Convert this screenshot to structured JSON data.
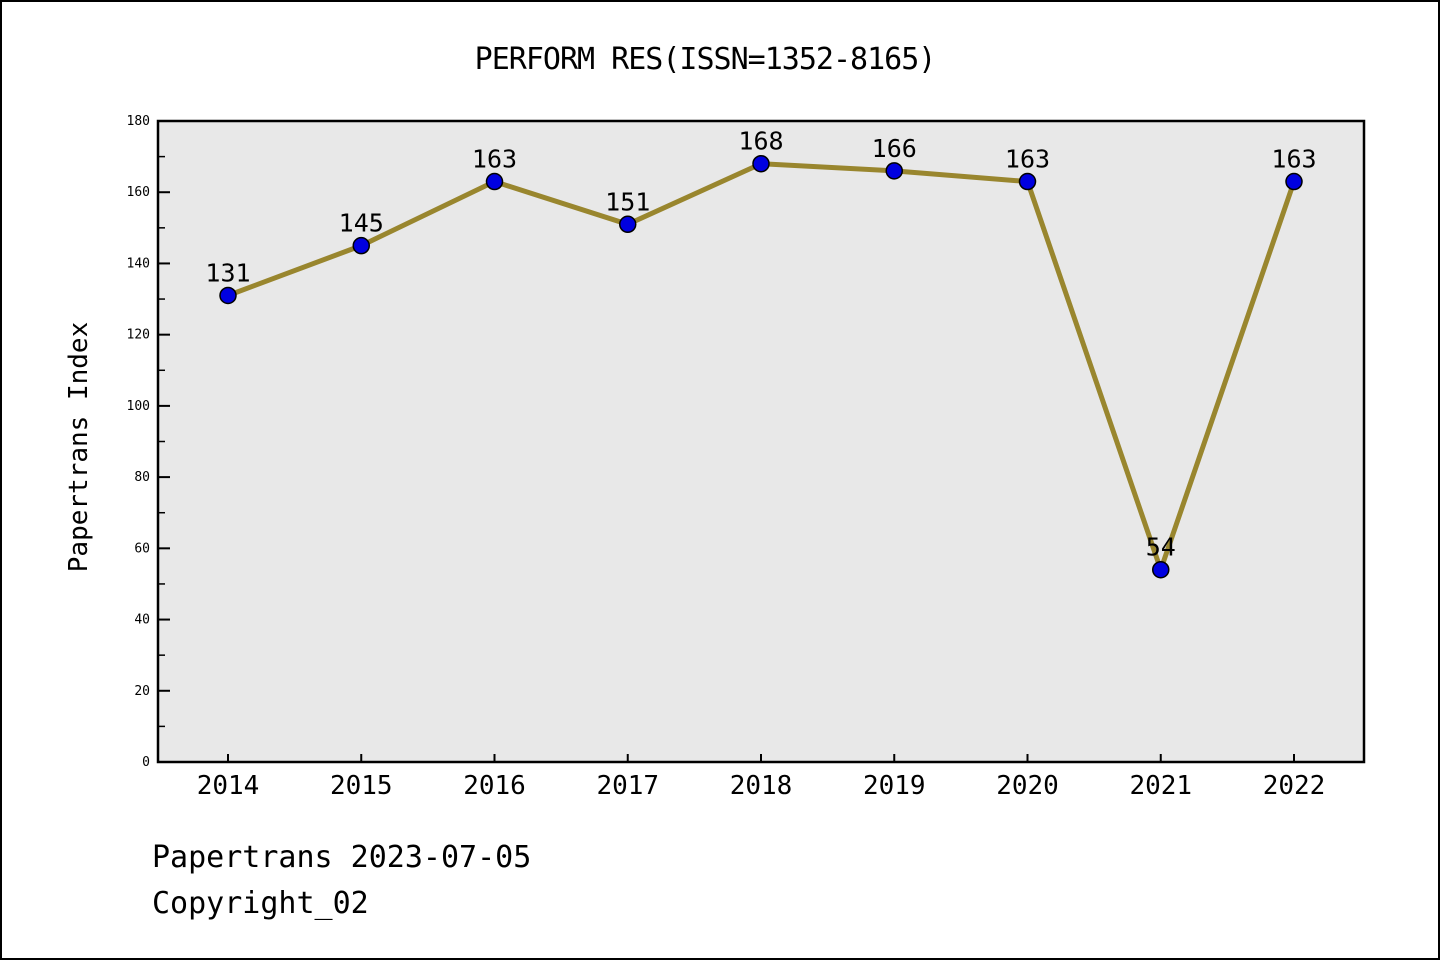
{
  "chart_data": {
    "type": "line",
    "title": "PERFORM RES(ISSN=1352-8165)",
    "categories": [
      "2014",
      "2015",
      "2016",
      "2017",
      "2018",
      "2019",
      "2020",
      "2021",
      "2022"
    ],
    "values": [
      131,
      145,
      163,
      151,
      168,
      166,
      163,
      54,
      163
    ],
    "series_name": "Papertrans Index",
    "xlabel": "",
    "ylabel": "Papertrans Index",
    "ylim": [
      0,
      180
    ],
    "y_major_ticks": [
      0,
      20,
      40,
      60,
      80,
      100,
      120,
      140,
      160,
      180
    ],
    "y_minor_step": 10,
    "grid": false,
    "legend_position": "none",
    "point_labels_visible": true,
    "colors": {
      "line": "#99862e",
      "marker_fill": "#0000e0",
      "marker_edge": "#000000",
      "plot_background": "#e8e8e8",
      "axis": "#000000",
      "text": "#000000"
    }
  },
  "footer": {
    "line1": "Papertrans 2023-07-05",
    "line2": "Copyright_02"
  }
}
